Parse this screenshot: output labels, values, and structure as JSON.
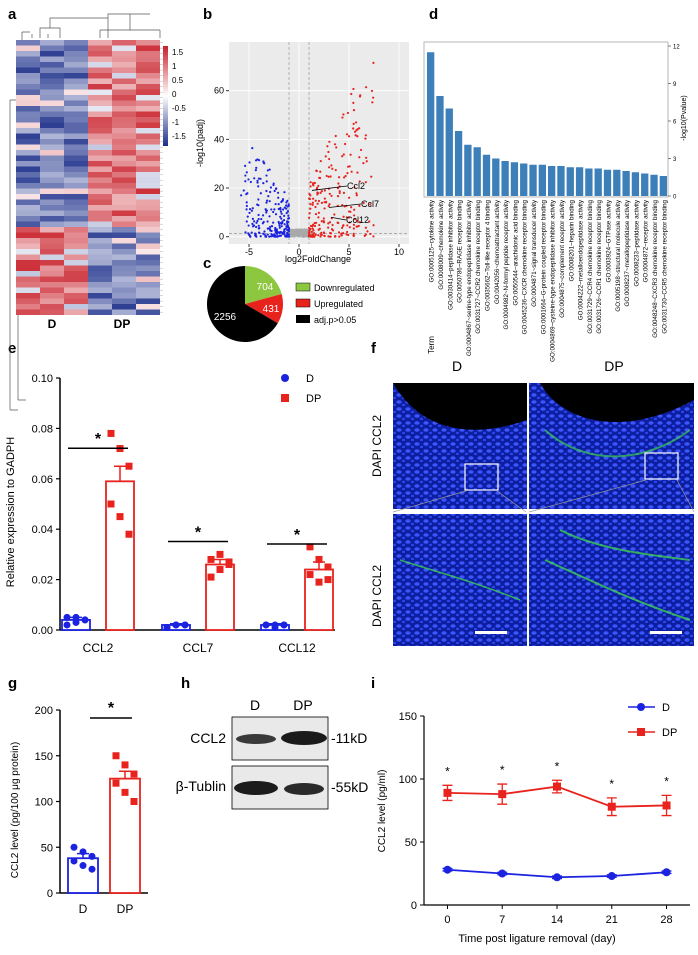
{
  "panel_labels": {
    "a": "a",
    "b": "b",
    "c": "c",
    "d": "d",
    "e": "e",
    "f": "f",
    "g": "g",
    "h": "h",
    "i": "i"
  },
  "colors": {
    "red": "#e8221d",
    "blue": "#1b22e0",
    "green": "#8dc63f",
    "black": "#000000",
    "bar": "#3d7fb8"
  },
  "chart_data": [
    {
      "id": "a",
      "type": "heatmap",
      "groups": [
        "D",
        "DP"
      ],
      "colorbar": {
        "ticks": [
          "1.5",
          "1",
          "0.5",
          "0",
          "-0.5",
          "-1",
          "-1.5"
        ],
        "range": [
          -1.5,
          1.5
        ]
      }
    },
    {
      "id": "b",
      "type": "scatter",
      "xlabel": "log2FoldChange",
      "ylabel": "-log10(padj)",
      "xlim": [
        -7,
        11
      ],
      "ylim": [
        -3,
        80
      ],
      "xticks": [
        "-5",
        "0",
        "5",
        "10"
      ],
      "yticks": [
        "0",
        "20",
        "40",
        "60"
      ],
      "annotations": [
        "Ccl2",
        "Ccl7",
        "Ccl12"
      ],
      "highlight_points": [
        {
          "x": 1.3,
          "y": 19
        },
        {
          "x": 3.0,
          "y": 12
        },
        {
          "x": 3.2,
          "y": 8
        }
      ],
      "series": [
        {
          "name": "Downregulated",
          "color": "#1b22e0"
        },
        {
          "name": "Upregulated",
          "color": "#e8221d"
        },
        {
          "name": "Not significant",
          "color": "#a9a9a9"
        }
      ]
    },
    {
      "id": "c",
      "type": "pie",
      "slices": [
        {
          "label": "Downregulated",
          "value": 704,
          "color": "#8dc63f"
        },
        {
          "label": "Upregulated",
          "value": 431,
          "color": "#e8221d"
        },
        {
          "label": "adj.p>0.05",
          "value": 2256,
          "color": "#000000"
        }
      ]
    },
    {
      "id": "d",
      "type": "bar",
      "xlabel": "Term",
      "ylabel": "-log10(Pvalue)",
      "ylim": [
        0,
        12
      ],
      "yticks": [
        "0",
        "3",
        "6",
        "9",
        "12"
      ],
      "categories": [
        "GO:0005125~cytokine activity",
        "GO:0008009~chemokine activity",
        "GO:0030414~peptidase inhibitor activity",
        "GO:0050786~RAGE receptor binding",
        "GO:0004867~serine-type endopeptidase inhibitor activity",
        "GO:0031727~CCR2 chemokine receptor binding",
        "GO:0035662~Toll-like receptor 4 binding",
        "GO:0042056~chemoattractant activity",
        "GO:0004982~N-formyl peptide receptor activity",
        "GO:0050544~arachidonic acid binding",
        "GO:0045236~CXCR chemokine receptor binding",
        "GO:0004871~signal transducer activity",
        "GO:0001664~G-protein coupled receptor binding",
        "GO:0004869~cysteine-type endopeptidase inhibitor activity",
        "GO:0004875~complement receptor activity",
        "GO:0008201~heparin binding",
        "GO:0004222~metalloendopeptidase activity",
        "GO:0031729~CCR4 chemokine receptor binding",
        "GO:0031726~CCR1 chemokine receptor binding",
        "GO:0003924~GTPase activity",
        "GO:0005198~structural molecule activity",
        "GO:0008237~metallopeptidase activity",
        "GO:0008233~peptidase activity",
        "GO:0004872~receptor activity",
        "GO:0048248~CXCR3 chemokine receptor binding",
        "GO:0031730~CCR5 chemokine receptor binding"
      ],
      "values": [
        11.5,
        8.0,
        7.0,
        5.2,
        4.1,
        3.9,
        3.3,
        3.0,
        2.8,
        2.7,
        2.6,
        2.5,
        2.5,
        2.4,
        2.4,
        2.3,
        2.3,
        2.2,
        2.2,
        2.1,
        2.1,
        2.0,
        1.9,
        1.8,
        1.7,
        1.6
      ]
    },
    {
      "id": "e",
      "type": "bar",
      "ylabel": "Relative expression to GADPH",
      "ylim": [
        0,
        0.1
      ],
      "yticks": [
        "0.00",
        "0.02",
        "0.04",
        "0.06",
        "0.08",
        "0.10"
      ],
      "categories": [
        "CCL2",
        "CCL7",
        "CCL12"
      ],
      "series": [
        {
          "name": "D",
          "values": [
            0.004,
            0.002,
            0.002
          ],
          "sem": [
            0.001,
            0.0005,
            0.0005
          ],
          "color": "#1b22e0"
        },
        {
          "name": "DP",
          "values": [
            0.059,
            0.026,
            0.024
          ],
          "sem": [
            0.006,
            0.002,
            0.003
          ],
          "color": "#e8221d"
        }
      ],
      "points": {
        "D": [
          [
            0.002,
            0.005,
            0.004,
            0.005,
            0.003,
            0.004
          ],
          [
            0.001,
            0.002,
            0.002,
            0.001,
            0.002,
            0.002
          ],
          [
            0.002,
            0.001,
            0.002,
            0.002,
            0.002,
            0.002
          ]
        ],
        "DP": [
          [
            0.078,
            0.072,
            0.065,
            0.05,
            0.045,
            0.038
          ],
          [
            0.028,
            0.03,
            0.026,
            0.021,
            0.024,
            0.027
          ],
          [
            0.033,
            0.028,
            0.025,
            0.022,
            0.019,
            0.02
          ]
        ]
      },
      "significance": [
        "*",
        "*",
        "*"
      ]
    },
    {
      "id": "g",
      "type": "bar",
      "ylabel": "CCL2 level (pg/100 μg protein)",
      "ylim": [
        0,
        200
      ],
      "yticks": [
        "0",
        "50",
        "100",
        "150",
        "200"
      ],
      "categories": [
        "D",
        "DP"
      ],
      "values": [
        38,
        125
      ],
      "sem": [
        5,
        8
      ],
      "colors": [
        "#1b22e0",
        "#e8221d"
      ],
      "points": [
        [
          50,
          45,
          40,
          35,
          30,
          26
        ],
        [
          150,
          140,
          130,
          120,
          110,
          100
        ]
      ],
      "significance": "*"
    },
    {
      "id": "i",
      "type": "line",
      "xlabel": "Time post ligature removal (day)",
      "ylabel": "CCL2 level (pg/ml)",
      "x": [
        0,
        7,
        14,
        21,
        28
      ],
      "xlim": [
        -3,
        31
      ],
      "ylim": [
        0,
        150
      ],
      "xticks": [
        "0",
        "7",
        "14",
        "21",
        "28"
      ],
      "yticks": [
        "0",
        "50",
        "100",
        "150"
      ],
      "series": [
        {
          "name": "D",
          "values": [
            28,
            25,
            22,
            23,
            26
          ],
          "sem": [
            1,
            1,
            1,
            1,
            1
          ],
          "color": "#1b22e0",
          "marker": "circle"
        },
        {
          "name": "DP",
          "values": [
            89,
            88,
            94,
            78,
            79
          ],
          "sem": [
            6,
            8,
            5,
            7,
            8
          ],
          "color": "#e8221d",
          "marker": "square"
        }
      ],
      "significance": [
        "*",
        "*",
        "*",
        "*",
        "*"
      ]
    }
  ],
  "panel_f": {
    "columns": [
      "D",
      "DP"
    ],
    "row_labels": [
      "DAPI CCL2",
      "DAPI CCL2"
    ]
  },
  "panel_h": {
    "columns": [
      "D",
      "DP"
    ],
    "rows": [
      "CCL2",
      "β-Tublin"
    ],
    "sizes": [
      "-11kD",
      "-55kD"
    ]
  }
}
